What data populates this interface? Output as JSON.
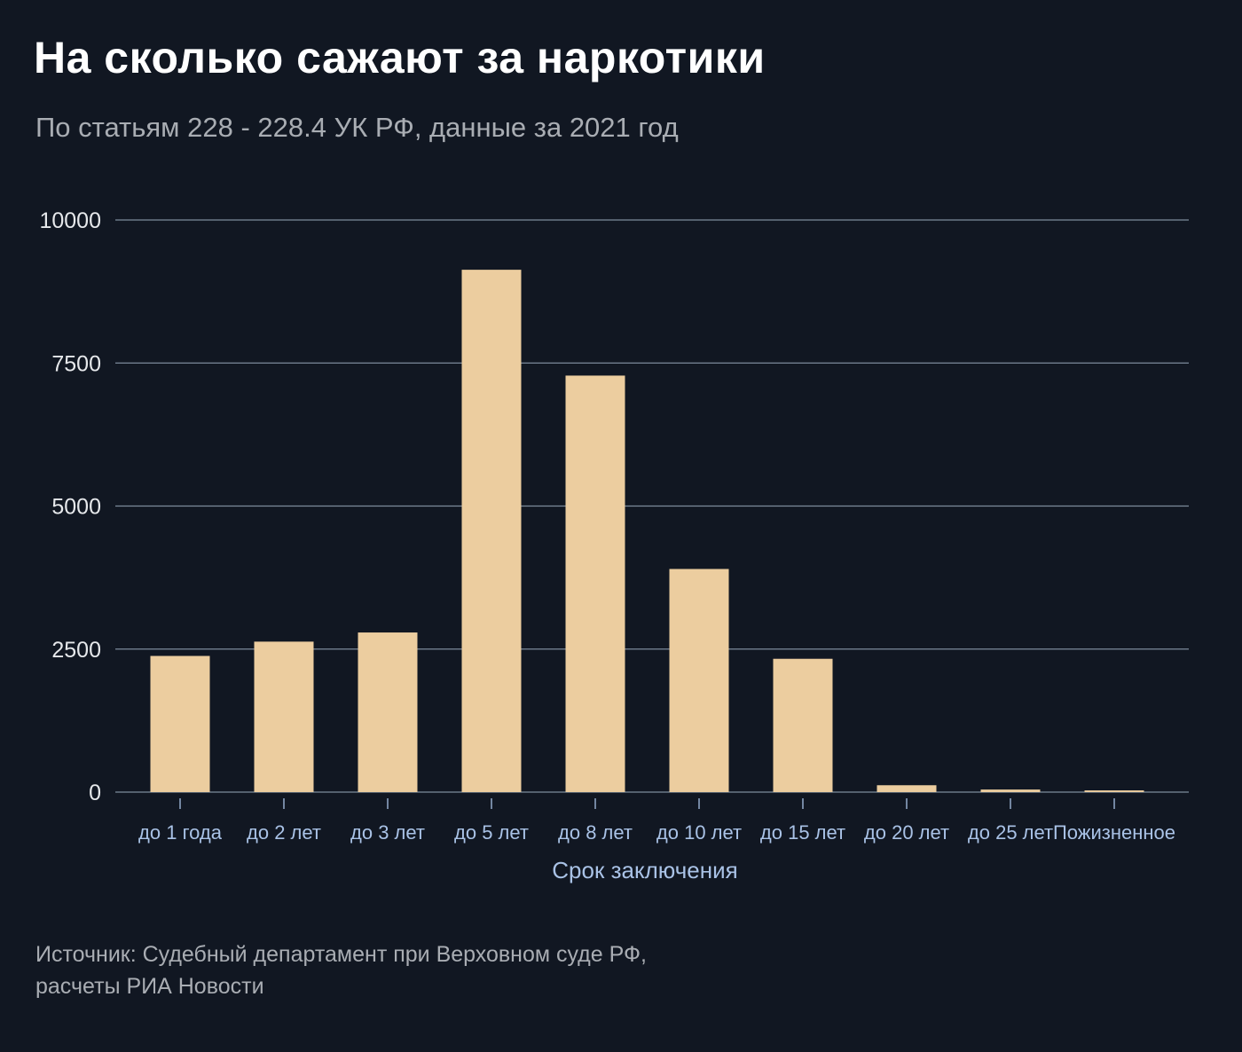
{
  "header": {
    "title": "На сколько сажают за наркотики",
    "subtitle": "По статьям 228 - 228.4 УК РФ, данные за 2021 год"
  },
  "footer": {
    "source_line1": "Источник: Судебный департамент при Верховном суде РФ,",
    "source_line2": "расчеты РИА Новости"
  },
  "colors": {
    "background": "#111722",
    "bar": "#eccd9f",
    "grid": "#7d8b9b",
    "tick_label": "#e6e8eb",
    "category_label": "#a9c2e6"
  },
  "chart_data": {
    "type": "bar",
    "title": "На сколько сажают за наркотики",
    "subtitle": "По статьям 228 - 228.4 УК РФ, данные за 2021 год",
    "xlabel": "Срок заключения",
    "ylabel": "",
    "categories": [
      "до 1 года",
      "до 2 лет",
      "до 3 лет",
      "до 5 лет",
      "до 8 лет",
      "до 10 лет",
      "до 15 лет",
      "до 20 лет",
      "до 25 лет",
      "Пожизненное"
    ],
    "values": [
      2380,
      2630,
      2790,
      9130,
      7280,
      3900,
      2330,
      120,
      45,
      30
    ],
    "ylim": [
      0,
      10000
    ],
    "yticks": [
      0,
      2500,
      5000,
      7500,
      10000
    ],
    "ytick_labels": [
      "0",
      "2500",
      "5000",
      "7500",
      "10000"
    ],
    "grid": true
  }
}
